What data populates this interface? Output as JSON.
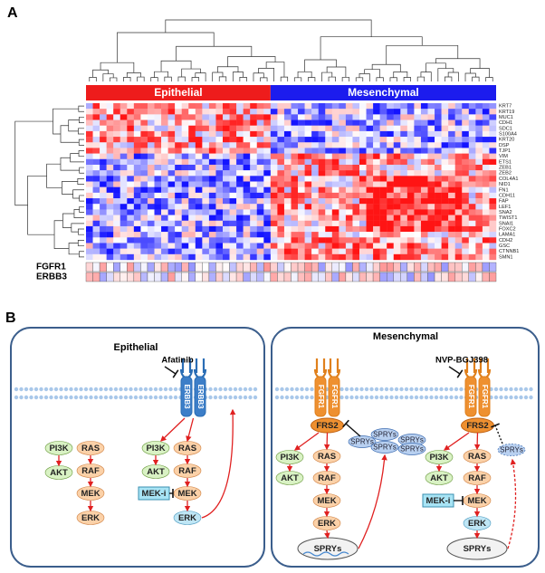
{
  "panel_a": {
    "label": "A",
    "groups": [
      "Epithelial",
      "Mesenchymal"
    ],
    "genes": [
      "KRT7",
      "KRT19",
      "MUC1",
      "CDH1",
      "SDC1",
      "S100A4",
      "KRT20",
      "DSP",
      "TJP1",
      "VIM",
      "ETS1",
      "ZEB1",
      "ZEB2",
      "COL4A1",
      "NID1",
      "FN1",
      "CDH11",
      "FAP",
      "LEF1",
      "SNA2",
      "TWIST1",
      "SNAI1",
      "FOXC2",
      "LAMA1",
      "CDH2",
      "GSC",
      "CTNNB1",
      "SMN1"
    ],
    "annotation_rows": [
      "FGFR1",
      "ERBB3"
    ]
  },
  "panel_b": {
    "label": "B",
    "panels": [
      {
        "title": "Epithelial",
        "diagrams": [
          {
            "nodes": [
              "PI3K",
              "AKT",
              "RAS",
              "RAF",
              "MEK",
              "ERK"
            ]
          },
          {
            "drug": "Afatinib",
            "receptors": [
              "ERBB3",
              "ERBB3"
            ],
            "nodes": [
              "PI3K",
              "AKT",
              "RAS",
              "RAF",
              "MEK-i",
              "MEK",
              "ERK"
            ]
          }
        ]
      },
      {
        "title": "Mesenchymal",
        "diagrams": [
          {
            "receptors": [
              "FGFR1",
              "FGFR1"
            ],
            "adaptor": "FRS2",
            "nodes": [
              "PI3K",
              "AKT",
              "RAS",
              "RAF",
              "MEK",
              "ERK",
              "SPRYs"
            ],
            "sprys": [
              "SPRYs",
              "SPRYs",
              "SPRYs",
              "SPRYs",
              "SPRYs"
            ]
          },
          {
            "drug": "NVP-BGJ398",
            "receptors": [
              "FGFR1",
              "FGFR1"
            ],
            "adaptor": "FRS2",
            "nodes": [
              "PI3K",
              "AKT",
              "RAS",
              "RAF",
              "MEK-i",
              "MEK",
              "ERK",
              "SPRYs"
            ],
            "sprys": [
              "SPRYs"
            ]
          }
        ]
      }
    ]
  }
}
